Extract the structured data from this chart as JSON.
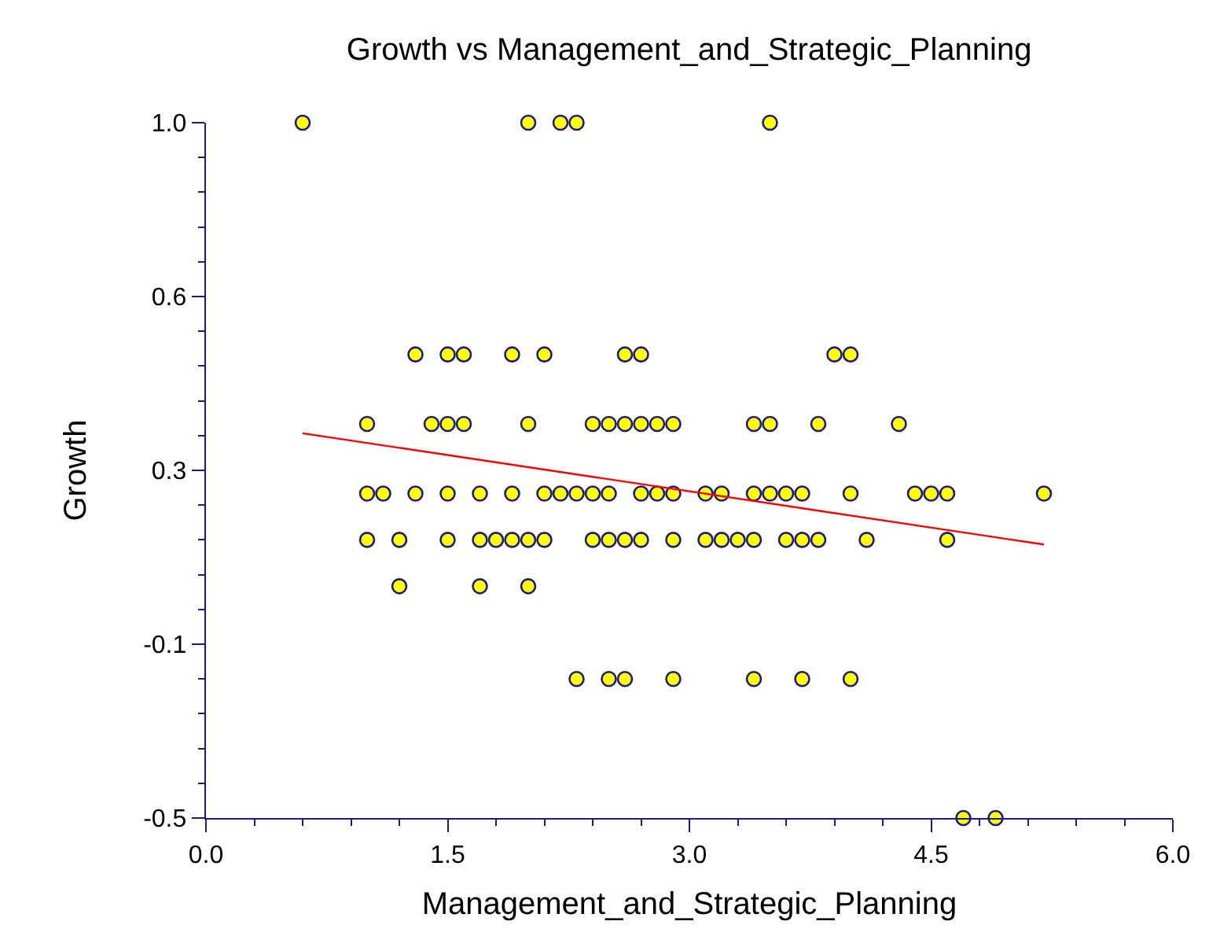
{
  "chart_data": {
    "type": "scatter",
    "title": "Growth vs Management_and_Strategic_Planning",
    "xlabel": "Management_and_Strategic_Planning",
    "ylabel": "Growth",
    "xlim": [
      0,
      6
    ],
    "ylim": [
      -0.5,
      1.0
    ],
    "xticks": [
      {
        "value": 0,
        "label": "0.0"
      },
      {
        "value": 0.3,
        "label": null
      },
      {
        "value": 0.6,
        "label": null
      },
      {
        "value": 0.9,
        "label": null
      },
      {
        "value": 1.2,
        "label": null
      },
      1.5,
      {
        "value": 1.8,
        "label": null
      },
      {
        "value": 2.1,
        "label": null
      },
      {
        "value": 2.4,
        "label": null
      },
      {
        "value": 2.7,
        "label": null
      },
      {
        "value": 3,
        "label": "3.0"
      },
      {
        "value": 3.3,
        "label": null
      },
      {
        "value": 3.6,
        "label": null
      },
      {
        "value": 3.9,
        "label": null
      },
      {
        "value": 4.2,
        "label": null
      },
      4.5,
      {
        "value": 4.8,
        "label": null
      },
      {
        "value": 5.1,
        "label": null
      },
      {
        "value": 5.4,
        "label": null
      },
      {
        "value": 5.7,
        "label": null
      },
      {
        "value": 6,
        "label": "6.0"
      }
    ],
    "yticks": [
      {
        "value": -0.5,
        "label": "-0.5"
      },
      {
        "value": -0.425,
        "label": null
      },
      {
        "value": -0.35,
        "label": null
      },
      {
        "value": -0.275,
        "label": null
      },
      {
        "value": -0.2,
        "label": null
      },
      {
        "value": -0.125,
        "label": "-0.1"
      },
      {
        "value": -0.05,
        "label": null
      },
      {
        "value": 0.025,
        "label": null
      },
      {
        "value": 0.1,
        "label": null
      },
      {
        "value": 0.175,
        "label": null
      },
      {
        "value": 0.25,
        "label": "0.3"
      },
      {
        "value": 0.325,
        "label": null
      },
      {
        "value": 0.4,
        "label": null
      },
      {
        "value": 0.475,
        "label": null
      },
      {
        "value": 0.55,
        "label": null
      },
      {
        "value": 0.625,
        "label": "0.6"
      },
      {
        "value": 0.7,
        "label": null
      },
      {
        "value": 0.775,
        "label": null
      },
      {
        "value": 0.85,
        "label": null
      },
      {
        "value": 0.925,
        "label": null
      },
      {
        "value": 1.0,
        "label": "1.0"
      }
    ],
    "marker": "circle",
    "series": [
      {
        "color": "#ffff00",
        "x": [
          0.6,
          2.0,
          2.2,
          2.3,
          3.5,
          1.3,
          1.5,
          1.6,
          1.9,
          2.1,
          2.6,
          2.7,
          3.9,
          4.0,
          1.0,
          1.4,
          1.5,
          1.6,
          2.0,
          2.4,
          2.5,
          2.6,
          2.7,
          2.8,
          2.9,
          3.4,
          3.5,
          3.8,
          4.3,
          1.0,
          1.1,
          1.3,
          1.5,
          1.7,
          1.9,
          2.1,
          2.2,
          2.3,
          2.4,
          2.5,
          2.7,
          2.8,
          2.9,
          3.1,
          3.2,
          3.4,
          3.5,
          3.6,
          3.7,
          4.0,
          4.4,
          4.5,
          4.6,
          5.2,
          1.0,
          1.2,
          1.5,
          1.7,
          1.8,
          1.9,
          2.0,
          2.1,
          2.4,
          2.5,
          2.6,
          2.7,
          2.9,
          3.1,
          3.2,
          3.3,
          3.4,
          3.6,
          3.7,
          3.8,
          4.1,
          4.6,
          1.2,
          1.7,
          2.0,
          2.3,
          2.5,
          2.6,
          2.9,
          3.4,
          3.7,
          4.0,
          4.7,
          4.9
        ],
        "values": [
          1.0,
          1.0,
          1.0,
          1.0,
          1.0,
          0.5,
          0.5,
          0.5,
          0.5,
          0.5,
          0.5,
          0.5,
          0.5,
          0.5,
          0.35,
          0.35,
          0.35,
          0.35,
          0.35,
          0.35,
          0.35,
          0.35,
          0.35,
          0.35,
          0.35,
          0.35,
          0.35,
          0.35,
          0.35,
          0.2,
          0.2,
          0.2,
          0.2,
          0.2,
          0.2,
          0.2,
          0.2,
          0.2,
          0.2,
          0.2,
          0.2,
          0.2,
          0.2,
          0.2,
          0.2,
          0.2,
          0.2,
          0.2,
          0.2,
          0.2,
          0.2,
          0.2,
          0.2,
          0.2,
          0.1,
          0.1,
          0.1,
          0.1,
          0.1,
          0.1,
          0.1,
          0.1,
          0.1,
          0.1,
          0.1,
          0.1,
          0.1,
          0.1,
          0.1,
          0.1,
          0.1,
          0.1,
          0.1,
          0.1,
          0.1,
          0.1,
          0.0,
          0.0,
          0.0,
          -0.2,
          -0.2,
          -0.2,
          -0.2,
          -0.2,
          -0.2,
          -0.2,
          -0.5,
          -0.5
        ]
      },
      {
        "type": "line",
        "color": "#ff0000",
        "x": [
          0.6,
          5.2
        ],
        "values": [
          0.33,
          0.09
        ],
        "marker": "none",
        "line_style": "solid"
      }
    ]
  }
}
